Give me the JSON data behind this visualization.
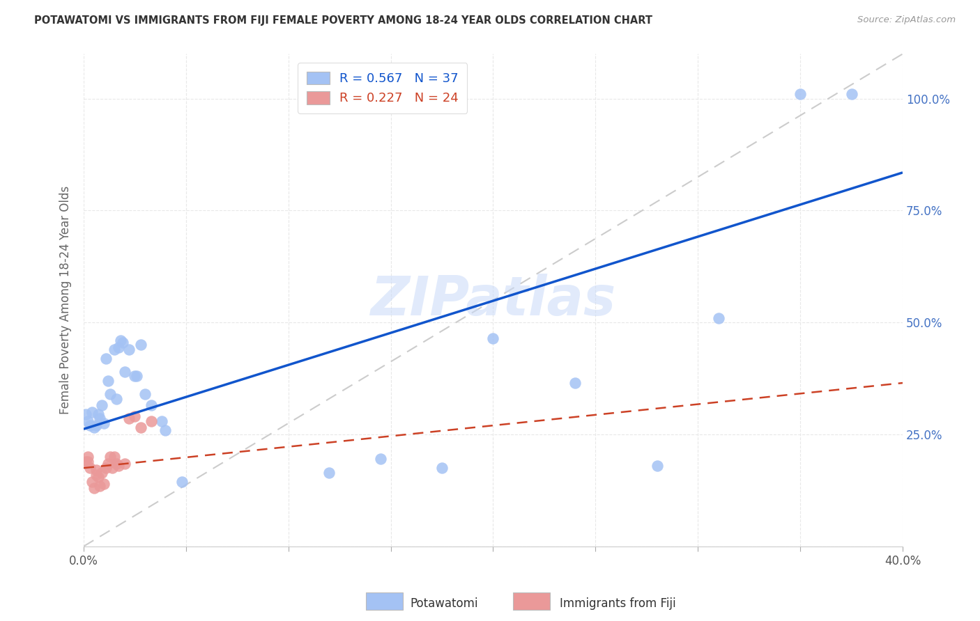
{
  "title": "POTAWATOMI VS IMMIGRANTS FROM FIJI FEMALE POVERTY AMONG 18-24 YEAR OLDS CORRELATION CHART",
  "source": "Source: ZipAtlas.com",
  "ylabel": "Female Poverty Among 18-24 Year Olds",
  "xlim": [
    0.0,
    0.4
  ],
  "ylim": [
    0.0,
    1.1
  ],
  "xticks": [
    0.0,
    0.05,
    0.1,
    0.15,
    0.2,
    0.25,
    0.3,
    0.35,
    0.4
  ],
  "yticks": [
    0.0,
    0.25,
    0.5,
    0.75,
    1.0
  ],
  "xtick_labels_show": [
    "0.0%",
    "40.0%"
  ],
  "ytick_labels": [
    "",
    "25.0%",
    "50.0%",
    "75.0%",
    "100.0%"
  ],
  "blue_R": 0.567,
  "blue_N": 37,
  "pink_R": 0.227,
  "pink_N": 24,
  "blue_color": "#a4c2f4",
  "pink_color": "#ea9999",
  "blue_line_color": "#1155cc",
  "pink_line_color": "#cc4125",
  "ref_line_color": "#cccccc",
  "background_color": "#ffffff",
  "grid_color": "#e8e8e8",
  "watermark": "ZIPatlas",
  "blue_points_x": [
    0.001,
    0.002,
    0.003,
    0.004,
    0.005,
    0.006,
    0.007,
    0.008,
    0.009,
    0.01,
    0.011,
    0.012,
    0.013,
    0.015,
    0.016,
    0.017,
    0.018,
    0.019,
    0.02,
    0.022,
    0.025,
    0.026,
    0.028,
    0.03,
    0.033,
    0.038,
    0.04,
    0.048,
    0.12,
    0.145,
    0.175,
    0.2,
    0.24,
    0.28,
    0.31,
    0.35,
    0.375
  ],
  "blue_points_y": [
    0.295,
    0.28,
    0.27,
    0.3,
    0.265,
    0.27,
    0.295,
    0.285,
    0.315,
    0.275,
    0.42,
    0.37,
    0.34,
    0.44,
    0.33,
    0.445,
    0.46,
    0.455,
    0.39,
    0.44,
    0.38,
    0.38,
    0.45,
    0.34,
    0.315,
    0.28,
    0.26,
    0.145,
    0.165,
    0.195,
    0.175,
    0.465,
    0.365,
    0.18,
    0.51,
    1.01,
    1.01
  ],
  "pink_points_x": [
    0.001,
    0.002,
    0.002,
    0.003,
    0.004,
    0.005,
    0.006,
    0.006,
    0.007,
    0.008,
    0.009,
    0.01,
    0.011,
    0.012,
    0.013,
    0.014,
    0.015,
    0.016,
    0.017,
    0.02,
    0.022,
    0.025,
    0.028,
    0.033
  ],
  "pink_points_y": [
    0.19,
    0.19,
    0.2,
    0.175,
    0.145,
    0.13,
    0.16,
    0.17,
    0.155,
    0.135,
    0.165,
    0.14,
    0.175,
    0.185,
    0.2,
    0.175,
    0.2,
    0.185,
    0.18,
    0.185,
    0.285,
    0.29,
    0.265,
    0.28
  ],
  "blue_line_x0": 0.0,
  "blue_line_y0": 0.262,
  "blue_line_x1": 0.4,
  "blue_line_y1": 0.835,
  "pink_line_x0": 0.0,
  "pink_line_y0": 0.175,
  "pink_line_x1": 0.4,
  "pink_line_y1": 0.365,
  "legend_label_blue": "Potawatomi",
  "legend_label_pink": "Immigrants from Fiji"
}
